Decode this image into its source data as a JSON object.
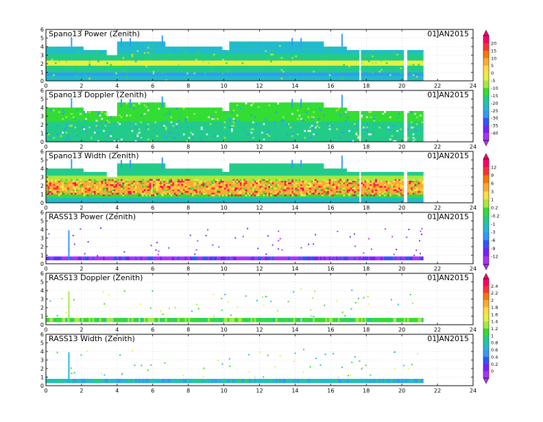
{
  "x_tick_labels": [
    "0",
    "2",
    "4",
    "6",
    "8",
    "10",
    "12",
    "14",
    "16",
    "18",
    "20",
    "22",
    "24"
  ],
  "y_tick_labels": [
    "0",
    "1",
    "2",
    "3",
    "4",
    "5",
    "6"
  ],
  "panel_titles": [
    "Spano13 Power (Zenith)",
    "Spano13 Doppler (Zenith)",
    "Spano13 Width (Zenith)",
    "RASS13 Power (Zenith)",
    "RASS13 Doppler (Zenith)",
    "RASS13 Width (Zenith)"
  ],
  "date_label": "01JAN2015",
  "colorbars": [
    {
      "tick_labels": [
        "20",
        "15",
        "10",
        "5",
        "0",
        "-5",
        "-10",
        "-15",
        "-20",
        "-25",
        "-30",
        "-35",
        "-40"
      ],
      "colors": [
        "#ff0066",
        "#ff3333",
        "#ff7700",
        "#ffaa33",
        "#ffdd44",
        "#e8f040",
        "#a8e840",
        "#33dd33",
        "#22cc88",
        "#22bbcc",
        "#3399ff",
        "#3355ff",
        "#7722ff",
        "#aa33ff"
      ]
    },
    {
      "tick_labels": [
        "12",
        "9",
        "6",
        "3",
        "1",
        "0.2",
        "-0.2",
        "-1",
        "-3",
        "-6",
        "-9",
        "-12"
      ],
      "colors": [
        "#ff0066",
        "#ff3333",
        "#ff7700",
        "#ffaa33",
        "#ffdd44",
        "#a8e840",
        "#33dd33",
        "#22cc88",
        "#22bbcc",
        "#3399ff",
        "#3355ff",
        "#7722ff",
        "#aa33ff"
      ]
    },
    {
      "tick_labels": [
        "2.4",
        "2.2",
        "2",
        "1.8",
        "1.6",
        "1.4",
        "1.2",
        "1",
        "0.8",
        "0.6",
        "0.4",
        "0.2",
        "0"
      ],
      "colors": [
        "#ff0066",
        "#ff3333",
        "#ff7700",
        "#ffaa33",
        "#ffdd44",
        "#e8f040",
        "#a8e840",
        "#33dd33",
        "#22cc88",
        "#22bbcc",
        "#3399ff",
        "#3355ff",
        "#7722ff",
        "#aa33ff"
      ]
    }
  ],
  "chart_data": [
    {
      "type": "heatmap",
      "title": "Spano13 Power (Zenith)",
      "date": "01JAN2015",
      "xlim": [
        0,
        24
      ],
      "ylim": [
        0,
        6
      ],
      "x_coverage": [
        0,
        21.2
      ],
      "gaps": [
        [
          17.5,
          17.6
        ],
        [
          20.1,
          20.3
        ]
      ],
      "max_height_profile": [
        [
          0,
          4
        ],
        [
          1.8,
          4
        ],
        [
          2.1,
          3.5
        ],
        [
          3.3,
          3.5
        ],
        [
          3.4,
          3
        ],
        [
          3.9,
          3
        ],
        [
          4,
          4.5
        ],
        [
          6.4,
          4.5
        ],
        [
          6.6,
          4
        ],
        [
          9.7,
          4
        ],
        [
          9.8,
          3.5
        ],
        [
          10.2,
          4.5
        ],
        [
          15.3,
          4.5
        ],
        [
          15.5,
          4
        ],
        [
          16.5,
          4
        ],
        [
          16.8,
          3.5
        ],
        [
          21.2,
          3.5
        ]
      ],
      "spikes": [
        [
          1.4,
          5.1
        ],
        [
          4.2,
          5.0
        ],
        [
          4.7,
          5.0
        ],
        [
          6.5,
          5.3
        ],
        [
          13.8,
          5.0
        ],
        [
          14.3,
          5.0
        ],
        [
          16.6,
          5.5
        ]
      ],
      "layers": [
        [
          0,
          0.5,
          "#22bbcc"
        ],
        [
          0.5,
          1.0,
          "#3399ff"
        ],
        [
          1.0,
          1.6,
          "#22cc88"
        ],
        [
          1.6,
          2.3,
          "#e8f040"
        ],
        [
          2.3,
          3.2,
          "#22cc88"
        ],
        [
          3.2,
          6,
          "#22bbcc"
        ]
      ],
      "noise_colors": [
        "#33dd33",
        "#a8e840",
        "#22cc88"
      ],
      "noise_density": 0.03,
      "colorbar": 0
    },
    {
      "type": "heatmap",
      "title": "Spano13 Doppler (Zenith)",
      "date": "01JAN2015",
      "xlim": [
        0,
        24
      ],
      "ylim": [
        0,
        6
      ],
      "x_coverage": [
        0,
        21.2
      ],
      "gaps": [
        [
          17.5,
          17.6
        ],
        [
          20.1,
          20.3
        ]
      ],
      "max_height_profile": [
        [
          0,
          4
        ],
        [
          1.8,
          4
        ],
        [
          2.1,
          3.5
        ],
        [
          3.3,
          3.5
        ],
        [
          3.4,
          3
        ],
        [
          3.9,
          3
        ],
        [
          4,
          4.5
        ],
        [
          6.4,
          4.5
        ],
        [
          6.6,
          4
        ],
        [
          9.7,
          4
        ],
        [
          9.8,
          3.5
        ],
        [
          10.2,
          4.5
        ],
        [
          15.3,
          4.5
        ],
        [
          15.5,
          4
        ],
        [
          16.5,
          4
        ],
        [
          16.8,
          3.5
        ],
        [
          21.2,
          3.5
        ]
      ],
      "spikes": [
        [
          1.4,
          5.1
        ],
        [
          4.2,
          5.0
        ],
        [
          4.7,
          5.0
        ],
        [
          6.5,
          5.3
        ],
        [
          13.8,
          5.0
        ],
        [
          14.3,
          5.0
        ],
        [
          16.6,
          5.5
        ]
      ],
      "layers": [
        [
          0,
          1.2,
          "#22cc88"
        ],
        [
          1.2,
          2.2,
          "#22cc88"
        ],
        [
          2.2,
          6,
          "#33dd33"
        ]
      ],
      "noise_colors": [
        "#22bbcc",
        "#a8e840",
        "#ffffff",
        "#3399ff"
      ],
      "noise_density": 0.08,
      "colorbar": 0
    },
    {
      "type": "heatmap",
      "title": "Spano13 Width (Zenith)",
      "date": "01JAN2015",
      "xlim": [
        0,
        24
      ],
      "ylim": [
        0,
        6
      ],
      "x_coverage": [
        0,
        21.2
      ],
      "gaps": [
        [
          17.5,
          17.6
        ],
        [
          20.1,
          20.3
        ]
      ],
      "max_height_profile": [
        [
          0,
          4
        ],
        [
          1.8,
          4
        ],
        [
          2.1,
          3.5
        ],
        [
          3.3,
          3.5
        ],
        [
          3.4,
          3
        ],
        [
          3.9,
          3
        ],
        [
          4,
          4.5
        ],
        [
          6.4,
          4.5
        ],
        [
          6.6,
          4
        ],
        [
          9.7,
          4
        ],
        [
          9.8,
          3.5
        ],
        [
          10.2,
          4.5
        ],
        [
          15.3,
          4.5
        ],
        [
          15.5,
          4
        ],
        [
          16.5,
          4
        ],
        [
          16.8,
          3.5
        ],
        [
          21.2,
          3.5
        ]
      ],
      "spikes": [
        [
          1.4,
          5.1
        ],
        [
          4.2,
          5.0
        ],
        [
          4.7,
          5.0
        ],
        [
          6.5,
          5.3
        ],
        [
          13.8,
          5.0
        ],
        [
          14.3,
          5.0
        ],
        [
          16.6,
          5.5
        ]
      ],
      "layers": [
        [
          0,
          0.6,
          "#22bbcc"
        ],
        [
          0.6,
          1.0,
          "#33dd33"
        ],
        [
          1.0,
          2.6,
          "#ffaa33"
        ],
        [
          2.6,
          3.2,
          "#a8e840"
        ],
        [
          3.2,
          6,
          "#22cc88"
        ]
      ],
      "noise_colors": [
        "#ff3333",
        "#ffdd44",
        "#e8f040",
        "#ff0066",
        "#33dd33"
      ],
      "noise_density": 0.4,
      "noise_band": [
        0.8,
        2.8
      ],
      "colorbar": 1
    },
    {
      "type": "scatter",
      "title": "RASS13 Power (Zenith)",
      "date": "01JAN2015",
      "xlim": [
        0,
        24
      ],
      "ylim": [
        0,
        6
      ],
      "x_coverage": [
        0,
        21.2
      ],
      "band": [
        0.4,
        0.85
      ],
      "band_color": "#aa33ff",
      "band_colors": [
        "#aa33ff",
        "#7722ff",
        "#aa33ff",
        "#3355ff"
      ],
      "spike": [
        1.25,
        0.4,
        3.9,
        "#3399ff"
      ],
      "scatter_count": 60,
      "scatter_colors": [
        "#7722ff",
        "#aa33ff"
      ],
      "colorbar": 1
    },
    {
      "type": "scatter",
      "title": "RASS13 Doppler (Zenith)",
      "date": "01JAN2015",
      "xlim": [
        0,
        24
      ],
      "ylim": [
        0,
        6
      ],
      "x_coverage": [
        0,
        21.2
      ],
      "band": [
        0.3,
        0.8
      ],
      "band_color": "#33dd33",
      "band_colors": [
        "#33dd33",
        "#a8e840",
        "#22cc88",
        "#33dd33"
      ],
      "spike": [
        1.25,
        0.3,
        3.9,
        "#a8e840"
      ],
      "scatter_count": 60,
      "scatter_colors": [
        "#a8e840",
        "#33dd33",
        "#e8f040",
        "#22bbcc"
      ],
      "colorbar": 2
    },
    {
      "type": "scatter",
      "title": "RASS13 Width (Zenith)",
      "date": "01JAN2015",
      "xlim": [
        0,
        24
      ],
      "ylim": [
        0,
        6
      ],
      "x_coverage": [
        0,
        21.2
      ],
      "band": [
        0.3,
        0.8
      ],
      "band_color": "#22bbcc",
      "band_colors": [
        "#22bbcc",
        "#3399ff",
        "#22cc88",
        "#22bbcc"
      ],
      "spike": [
        1.25,
        0.3,
        3.9,
        "#22bbcc"
      ],
      "scatter_count": 60,
      "scatter_colors": [
        "#33dd33",
        "#22bbcc",
        "#e8f040"
      ],
      "colorbar": 2
    }
  ]
}
